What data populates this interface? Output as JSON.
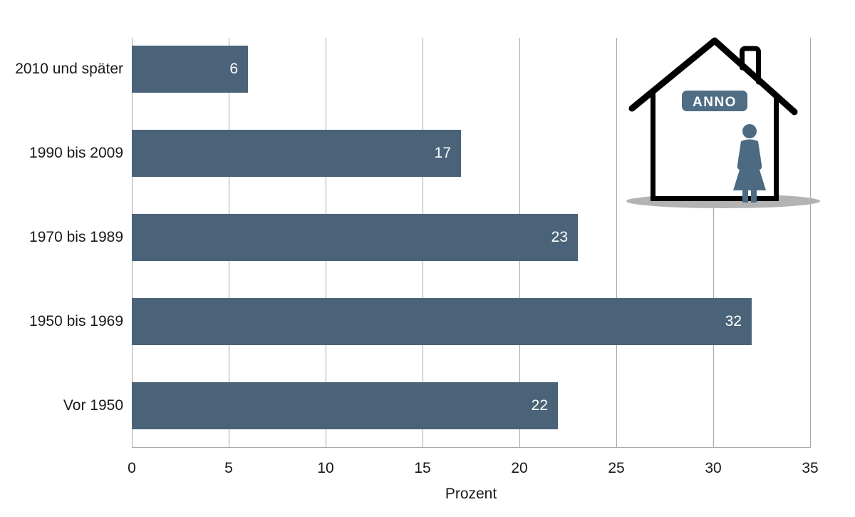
{
  "chart_data": {
    "type": "bar",
    "orientation": "horizontal",
    "categories": [
      "2010 und später",
      "1990 bis 2009",
      "1970 bis 1989",
      "1950 bis 1969",
      "Vor 1950"
    ],
    "values": [
      6,
      17,
      23,
      32,
      22
    ],
    "xlabel": "Prozent",
    "x_ticks": [
      0,
      5,
      10,
      15,
      20,
      25,
      30,
      35
    ],
    "xlim": [
      0,
      35
    ],
    "grid": "vertical gridlines at every x tick",
    "legend": "none",
    "value_label_position": "inside bar right end",
    "bar_color": "#4A6378",
    "gridline_color": "#A9A9A9",
    "axis_text_color": "#191919",
    "value_label_color": "#FFFFFF"
  },
  "decoration": {
    "badge_label": "ANNO",
    "badge_color": "#4F6D85",
    "badge_text_color": "#FFFFFF",
    "figure_color": "#4C6B82",
    "house_outline_color": "#000000",
    "house_fill_color": "#FFFFFF",
    "shadow_color": "#B3B3B3"
  }
}
